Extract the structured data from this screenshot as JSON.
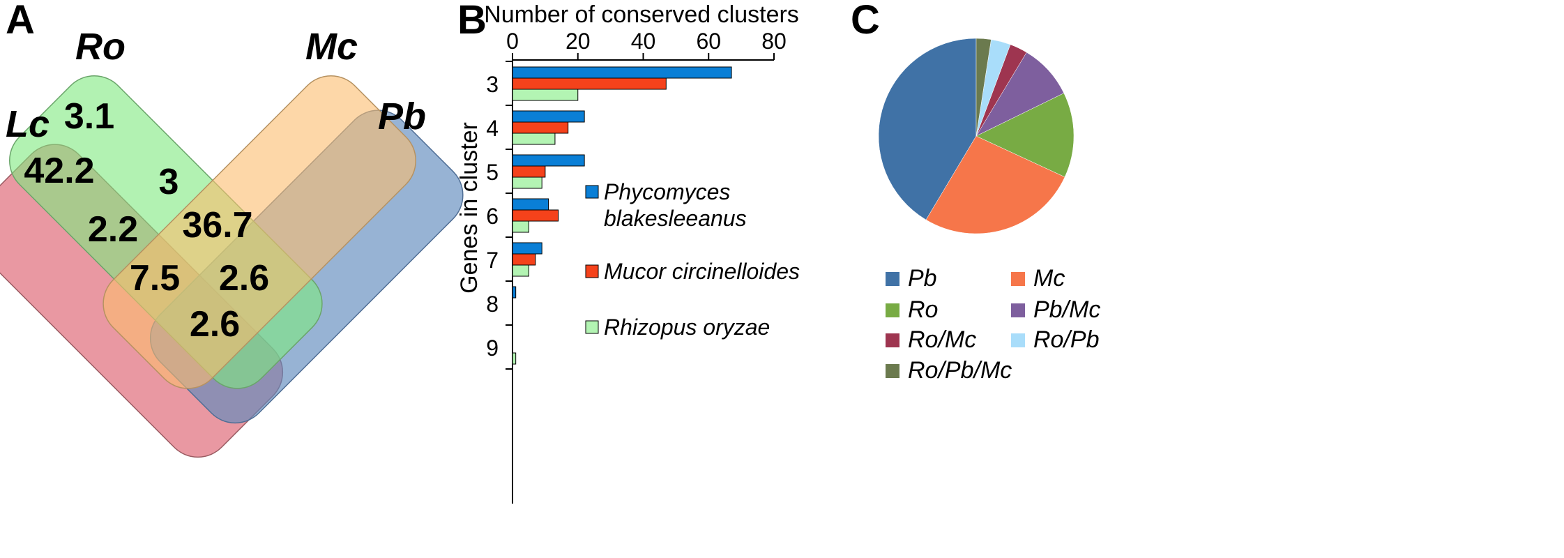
{
  "panel_labels": {
    "a": "A",
    "b": "B",
    "c": "C"
  },
  "chart_data": [
    {
      "type": "venn",
      "sets": [
        {
          "name": "Lc",
          "color": "#e0707e"
        },
        {
          "name": "Ro",
          "color": "#7ee97e"
        },
        {
          "name": "Mc",
          "color": "#fbbd6e"
        },
        {
          "name": "Pb",
          "color": "#5f8bbd"
        }
      ],
      "region_values": [
        {
          "sets": [
            "Lc"
          ],
          "label": "42.2"
        },
        {
          "sets": [
            "Lc",
            "Ro"
          ],
          "label": "3.1"
        },
        {
          "sets": [
            "Lc",
            "Ro",
            "Mc"
          ],
          "label": "3"
        },
        {
          "sets": [
            "Lc",
            "Mc"
          ],
          "label": "2.2"
        },
        {
          "sets": [
            "Lc",
            "Ro",
            "Mc",
            "Pb"
          ],
          "label": "36.7"
        },
        {
          "sets": [
            "Lc",
            "Mc",
            "Pb"
          ],
          "label": "7.5"
        },
        {
          "sets": [
            "Lc",
            "Ro",
            "Pb"
          ],
          "label": "2.6"
        },
        {
          "sets": [
            "Lc",
            "Pb"
          ],
          "label": "2.6"
        }
      ]
    },
    {
      "type": "bar",
      "orientation": "horizontal",
      "title": "",
      "xlabel": "Number of conserved clusters",
      "ylabel": "Genes in cluster",
      "xlim": [
        0,
        80
      ],
      "xticks": [
        "0",
        "20",
        "40",
        "60",
        "80"
      ],
      "categories": [
        "3",
        "4",
        "5",
        "6",
        "7",
        "8",
        "9"
      ],
      "series": [
        {
          "name": "Phycomyces blakesleeanus",
          "name_lines": [
            "Phycomyces",
            "blakesleeanus"
          ],
          "color": "#0a7fd6",
          "values": [
            67,
            22,
            22,
            11,
            9,
            1,
            0
          ]
        },
        {
          "name": "Mucor circinelloides",
          "name_lines": [
            "Mucor circinelloides"
          ],
          "color": "#f5421b",
          "values": [
            47,
            17,
            10,
            14,
            7,
            0,
            0
          ]
        },
        {
          "name": "Rhizopus oryzae",
          "name_lines": [
            "Rhizopus oryzae"
          ],
          "color": "#b3f4b3",
          "values": [
            20,
            13,
            9,
            5,
            5,
            0,
            1
          ]
        }
      ],
      "legend_position": "right"
    },
    {
      "type": "pie",
      "slices": [
        {
          "label": "Pb",
          "value": 42.2,
          "color": "#4072a6"
        },
        {
          "label": "Mc",
          "value": 27.2,
          "color": "#f6764a"
        },
        {
          "label": "Ro",
          "value": 14.4,
          "color": "#78ab44"
        },
        {
          "label": "Pb/Mc",
          "value": 9.3,
          "color": "#7e5f9e"
        },
        {
          "label": "Ro/Mc",
          "value": 3.0,
          "color": "#9e3550"
        },
        {
          "label": "Ro/Pb",
          "value": 3.3,
          "color": "#a9ddfa"
        },
        {
          "label": "Ro/Pb/Mc",
          "value": 2.5,
          "color": "#6b7a4e"
        }
      ],
      "legend_position": "bottom"
    }
  ]
}
